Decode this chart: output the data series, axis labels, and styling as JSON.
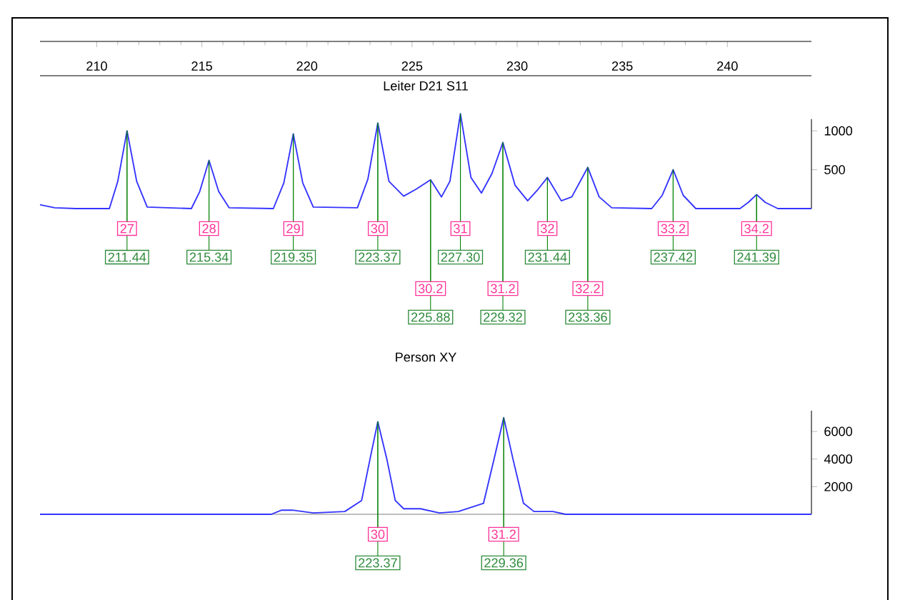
{
  "chart_data": [
    {
      "type": "line",
      "title": "Leiter D21 S11",
      "x": [
        207.3,
        208,
        209,
        210.6,
        211.0,
        211.44,
        211.9,
        212.4,
        214.5,
        214.9,
        215.34,
        215.8,
        216.3,
        218.4,
        218.9,
        219.35,
        219.8,
        220.3,
        222.4,
        222.9,
        223.37,
        223.9,
        224.6,
        225.2,
        225.88,
        226.4,
        226.8,
        227.3,
        227.8,
        228.3,
        228.8,
        229.32,
        229.9,
        230.5,
        231.0,
        231.44,
        232.1,
        232.6,
        233.36,
        233.9,
        234.5,
        236.4,
        236.9,
        237.42,
        237.9,
        238.5,
        240.6,
        241.0,
        241.39,
        241.8,
        242.4,
        244
      ],
      "series": [
        {
          "color": "#3333ff",
          "values": [
            50,
            10,
            0,
            0,
            350,
            1000,
            350,
            20,
            0,
            220,
            620,
            220,
            10,
            0,
            330,
            960,
            330,
            20,
            10,
            380,
            1100,
            350,
            160,
            250,
            370,
            150,
            350,
            1220,
            400,
            200,
            450,
            850,
            300,
            100,
            250,
            400,
            100,
            150,
            530,
            150,
            10,
            0,
            170,
            500,
            170,
            0,
            0,
            80,
            180,
            80,
            0,
            0
          ]
        }
      ],
      "xlim": [
        207.3,
        244
      ],
      "xticks": [
        210,
        215,
        220,
        225,
        230,
        235,
        240
      ],
      "ylim": [
        0,
        2150
      ],
      "yticks": [
        500,
        1000
      ],
      "annotations": [
        {
          "text": "27",
          "x": 211.44,
          "y": 1000
        },
        {
          "text": "211.44",
          "x": 211.44,
          "y": 1000
        },
        {
          "text": "28",
          "x": 215.34,
          "y": 620
        },
        {
          "text": "215.34",
          "x": 215.34,
          "y": 620
        },
        {
          "text": "29",
          "x": 219.35,
          "y": 960
        },
        {
          "text": "219.35",
          "x": 219.35,
          "y": 960
        },
        {
          "text": "30",
          "x": 223.37,
          "y": 1100
        },
        {
          "text": "223.37",
          "x": 223.37,
          "y": 1100
        },
        {
          "text": "30.2",
          "x": 225.88,
          "y": 370
        },
        {
          "text": "225.88",
          "x": 225.88,
          "y": 370
        },
        {
          "text": "31",
          "x": 227.3,
          "y": 1220
        },
        {
          "text": "227.30",
          "x": 227.3,
          "y": 1220
        },
        {
          "text": "31.2",
          "x": 229.32,
          "y": 850
        },
        {
          "text": "229.32",
          "x": 229.32,
          "y": 850
        },
        {
          "text": "32",
          "x": 231.44,
          "y": 400
        },
        {
          "text": "231.44",
          "x": 231.44,
          "y": 400
        },
        {
          "text": "32.2",
          "x": 233.36,
          "y": 530
        },
        {
          "text": "233.36",
          "x": 233.36,
          "y": 530
        },
        {
          "text": "33.2",
          "x": 237.42,
          "y": 500
        },
        {
          "text": "237.42",
          "x": 237.42,
          "y": 500
        },
        {
          "text": "34.2",
          "x": 241.39,
          "y": 180
        },
        {
          "text": "241.39",
          "x": 241.39,
          "y": 180
        }
      ]
    },
    {
      "type": "line",
      "title": "Person XY",
      "x": [
        207.3,
        218.3,
        218.8,
        219.3,
        219.8,
        220.3,
        221.8,
        222.6,
        223.0,
        223.37,
        223.8,
        224.2,
        224.6,
        225.4,
        226.3,
        227.2,
        228.4,
        228.9,
        229.36,
        229.8,
        230.3,
        230.8,
        231.7,
        232.3,
        244
      ],
      "series": [
        {
          "color": "#3333ff",
          "values": [
            0,
            0,
            300,
            300,
            200,
            100,
            200,
            1000,
            4000,
            6700,
            4000,
            1000,
            400,
            400,
            100,
            200,
            800,
            4000,
            7000,
            4000,
            800,
            200,
            200,
            0,
            0
          ]
        }
      ],
      "xlim": [
        207.3,
        244
      ],
      "tick_labels": "y",
      "ylim": [
        0,
        7500
      ],
      "yticks": [
        2000,
        4000,
        6000
      ],
      "annotations": [
        {
          "text": "30",
          "x": 223.37,
          "y": 6700
        },
        {
          "text": "223.37",
          "x": 223.37,
          "y": 6700
        },
        {
          "text": "31.2",
          "x": 229.36,
          "y": 7000
        },
        {
          "text": "229.36",
          "x": 229.36,
          "y": 7000
        }
      ]
    }
  ]
}
